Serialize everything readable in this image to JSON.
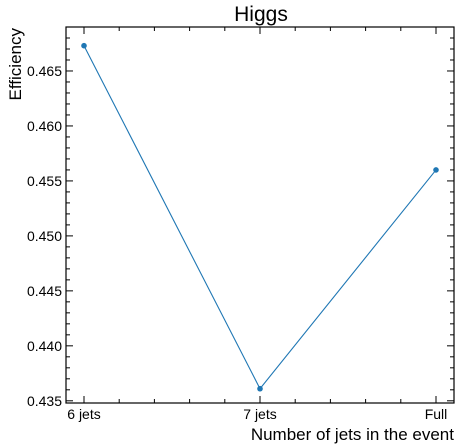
{
  "chart_data": {
    "type": "line",
    "title": "Higgs",
    "xlabel": "Number of jets in the event",
    "ylabel": "Efficiency",
    "categories": [
      "6 jets",
      "7 jets",
      "Full"
    ],
    "series": [
      {
        "values": [
          0.4673,
          0.4361,
          0.456
        ],
        "color": "#1f77b4"
      }
    ],
    "ylim": [
      0.4348,
      0.469
    ],
    "yticks": [
      "0.435",
      "0.440",
      "0.445",
      "0.450",
      "0.455",
      "0.460",
      "0.465"
    ],
    "grid": false,
    "legend": "none"
  }
}
